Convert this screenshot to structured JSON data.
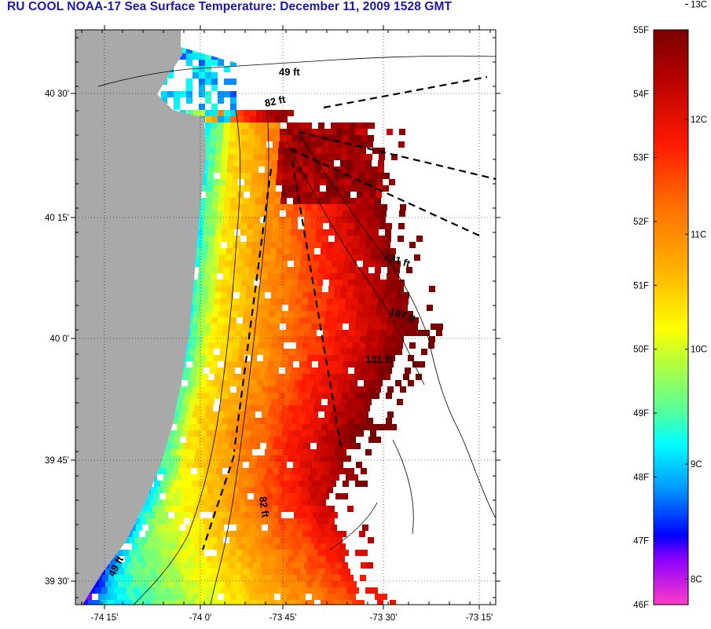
{
  "title": "RU COOL  NOAA-17  Sea Surface Temperature:  December 11, 2009 1528 GMT",
  "map": {
    "lat_ticks": [
      "40 30'",
      "40 15'",
      "40 0'",
      "39 45'",
      "39 30'"
    ],
    "lon_ticks": [
      "-74 15'",
      "-74 0'",
      "-73 45'",
      "-73 30'",
      "-73 15'"
    ],
    "contour_labels": [
      {
        "text": "49 ft",
        "rotate": 0
      },
      {
        "text": "82 ft",
        "rotate": -12
      },
      {
        "text": "131 ft",
        "rotate": 18
      },
      {
        "text": "197 ft",
        "rotate": 18
      },
      {
        "text": "131 ft",
        "rotate": 0
      },
      {
        "text": "82 ft",
        "rotate": 82
      },
      {
        "text": "49 ft",
        "rotate": -62
      }
    ],
    "colors": {
      "land": "#a9a9a9",
      "background": "#ffffff",
      "contour": "#000000"
    }
  },
  "colorbar": {
    "fahrenheit_labels": [
      "55F",
      "54F",
      "53F",
      "52F",
      "51F",
      "50F",
      "49F",
      "48F",
      "47F",
      "46F"
    ],
    "celsius_labels": [
      "13C",
      "12C",
      "11C",
      "10C",
      "9C",
      "8C"
    ],
    "range_f": [
      46,
      55
    ],
    "range_c": [
      8,
      13
    ]
  }
}
